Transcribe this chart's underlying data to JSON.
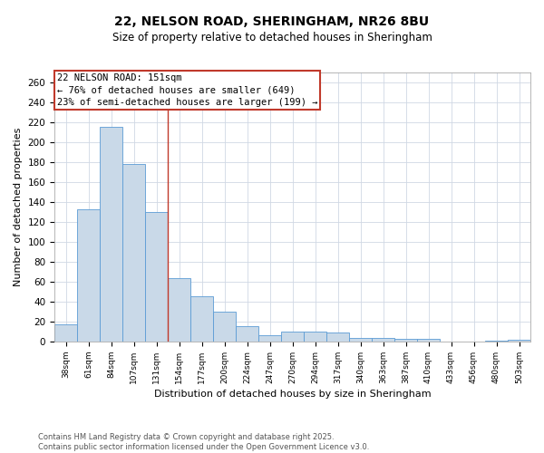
{
  "title_line1": "22, NELSON ROAD, SHERINGHAM, NR26 8BU",
  "title_line2": "Size of property relative to detached houses in Sheringham",
  "xlabel": "Distribution of detached houses by size in Sheringham",
  "ylabel": "Number of detached properties",
  "categories": [
    "38sqm",
    "61sqm",
    "84sqm",
    "107sqm",
    "131sqm",
    "154sqm",
    "177sqm",
    "200sqm",
    "224sqm",
    "247sqm",
    "270sqm",
    "294sqm",
    "317sqm",
    "340sqm",
    "363sqm",
    "387sqm",
    "410sqm",
    "433sqm",
    "456sqm",
    "480sqm",
    "503sqm"
  ],
  "values": [
    17,
    133,
    215,
    178,
    130,
    64,
    45,
    30,
    15,
    6,
    10,
    10,
    9,
    4,
    4,
    3,
    3,
    0,
    0,
    1,
    2
  ],
  "bar_color": "#c9d9e8",
  "bar_edge_color": "#5b9bd5",
  "vline_x": 4.5,
  "vline_color": "#c0392b",
  "annotation_text": "22 NELSON ROAD: 151sqm\n← 76% of detached houses are smaller (649)\n23% of semi-detached houses are larger (199) →",
  "annotation_box_color": "#c0392b",
  "ylim": [
    0,
    270
  ],
  "yticks": [
    0,
    20,
    40,
    60,
    80,
    100,
    120,
    140,
    160,
    180,
    200,
    220,
    240,
    260
  ],
  "footnote_line1": "Contains HM Land Registry data © Crown copyright and database right 2025.",
  "footnote_line2": "Contains public sector information licensed under the Open Government Licence v3.0.",
  "background_color": "#ffffff",
  "grid_color": "#d0d8e4"
}
